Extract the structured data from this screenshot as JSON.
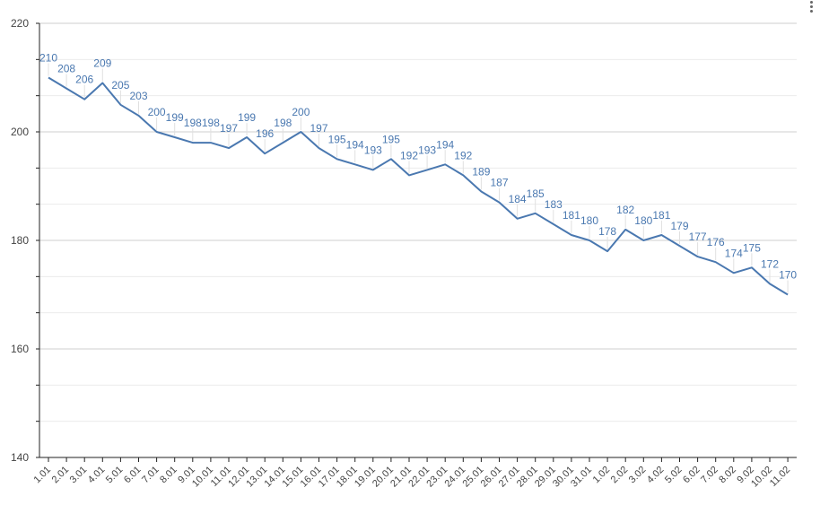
{
  "chart_data": {
    "type": "line",
    "categories": [
      "1.01",
      "2.01",
      "3.01",
      "4.01",
      "5.01",
      "6.01",
      "7.01",
      "8.01",
      "9.01",
      "10.01",
      "11.01",
      "12.01",
      "13.01",
      "14.01",
      "15.01",
      "16.01",
      "17.01",
      "18.01",
      "19.01",
      "20.01",
      "21.01",
      "22.01",
      "23.01",
      "24.01",
      "25.01",
      "26.01",
      "27.01",
      "28.01",
      "29.01",
      "30.01",
      "31.01",
      "1.02",
      "2.02",
      "3.02",
      "4.02",
      "5.02",
      "6.02",
      "7.02",
      "8.02",
      "9.02",
      "10.02",
      "11.02"
    ],
    "series": [
      {
        "values": [
          210,
          208,
          206,
          209,
          205,
          203,
          200,
          199,
          198,
          198,
          197,
          199,
          196,
          198,
          200,
          197,
          195,
          194,
          193,
          195,
          192,
          193,
          194,
          192,
          189,
          187,
          184,
          185,
          183,
          181,
          180,
          178,
          182,
          180,
          181,
          179,
          177,
          176,
          174,
          175,
          172,
          170
        ]
      }
    ],
    "ylim": [
      140,
      220
    ],
    "yticks": [
      "140",
      "160",
      "180",
      "200",
      "220"
    ],
    "grid": true,
    "line_color": "#4a78b0",
    "label_color": "#4a78b0"
  },
  "menu": {
    "icon": "vertical-dots-icon"
  }
}
